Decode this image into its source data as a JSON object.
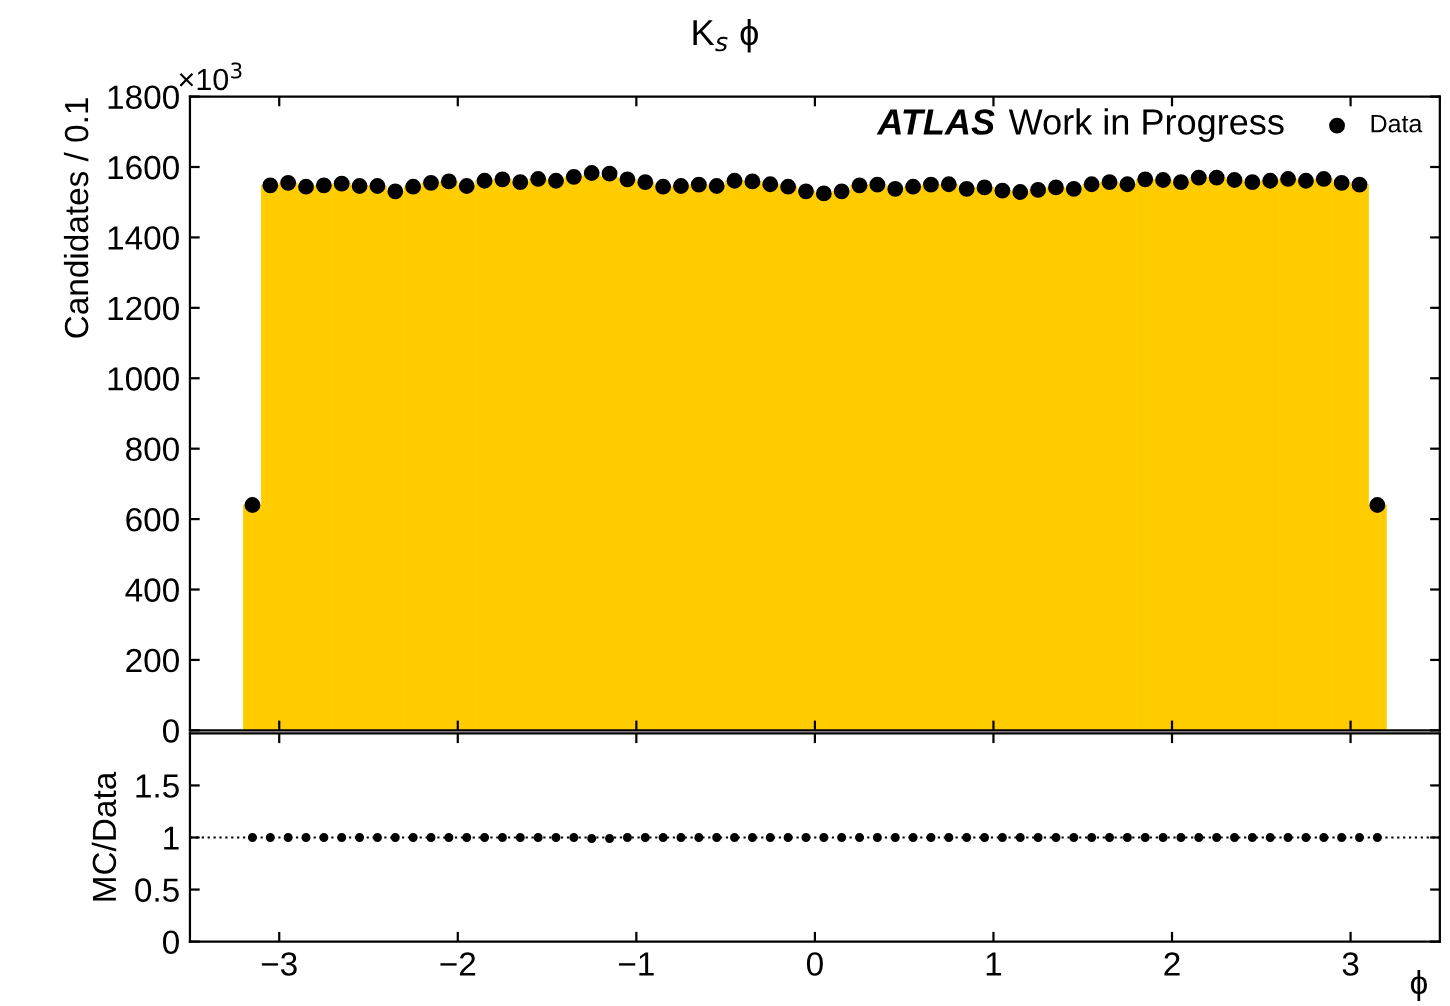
{
  "chart_data": [
    {
      "type": "histogram",
      "title": "K$_{s}$ ϕ",
      "ylabel": "Candidates / 0.1",
      "annotations": [
        "×10$^{3}$",
        "ATLAS",
        "Work in Progress"
      ],
      "bins": [
        -3.2,
        -3.1,
        -3.0,
        -2.9,
        -2.8,
        -2.7,
        -2.6,
        -2.5,
        -2.4,
        -2.3,
        -2.2,
        -2.1,
        -2.0,
        -1.9,
        -1.8,
        -1.7,
        -1.6,
        -1.5,
        -1.4,
        -1.3,
        -1.2,
        -1.1,
        -1.0,
        -0.9,
        -0.8,
        -0.7,
        -0.6,
        -0.5,
        -0.4,
        -0.3,
        -0.2,
        -0.1,
        0.0,
        0.1,
        0.2,
        0.3,
        0.4,
        0.5,
        0.6,
        0.7,
        0.8,
        0.9,
        1.0,
        1.1,
        1.2,
        1.3,
        1.4,
        1.5,
        1.6,
        1.7,
        1.8,
        1.9,
        2.0,
        2.1,
        2.2,
        2.3,
        2.4,
        2.5,
        2.6,
        2.7,
        2.8,
        2.9,
        3.0,
        3.1,
        3.2
      ],
      "series": [
        {
          "type": "histogram",
          "color": "#ffcc00",
          "values": [
            640,
            1548,
            1555,
            1544,
            1548,
            1553,
            1546,
            1546,
            1531,
            1544,
            1555,
            1559,
            1546,
            1561,
            1565,
            1557,
            1566,
            1561,
            1572,
            1575,
            1570,
            1565,
            1557,
            1544,
            1546,
            1550,
            1546,
            1561,
            1559,
            1551,
            1544,
            1531,
            1525,
            1531,
            1548,
            1550,
            1538,
            1544,
            1550,
            1551,
            1538,
            1542,
            1533,
            1529,
            1535,
            1542,
            1538,
            1551,
            1557,
            1551,
            1565,
            1563,
            1557,
            1570,
            1570,
            1563,
            1557,
            1561,
            1566,
            1561,
            1566,
            1555,
            1550,
            640
          ]
        },
        {
          "type": "scatter",
          "name": "Data",
          "color": "#000000",
          "x": [
            -3.15,
            -3.05,
            -2.95,
            -2.85,
            -2.75,
            -2.65,
            -2.55,
            -2.45,
            -2.35,
            -2.25,
            -2.15,
            -2.05,
            -1.95,
            -1.85,
            -1.75,
            -1.65,
            -1.55,
            -1.45,
            -1.35,
            -1.25,
            -1.15,
            -1.05,
            -0.95,
            -0.85,
            -0.75,
            -0.65,
            -0.55,
            -0.45,
            -0.35,
            -0.25,
            -0.15,
            -0.05,
            0.05,
            0.15,
            0.25,
            0.35,
            0.45,
            0.55,
            0.65,
            0.75,
            0.85,
            0.95,
            1.05,
            1.15,
            1.25,
            1.35,
            1.45,
            1.55,
            1.65,
            1.75,
            1.85,
            1.95,
            2.05,
            2.15,
            2.25,
            2.35,
            2.45,
            2.55,
            2.65,
            2.75,
            2.85,
            2.95,
            3.05,
            3.15
          ],
          "values": [
            640,
            1548,
            1555,
            1544,
            1548,
            1553,
            1546,
            1546,
            1531,
            1544,
            1555,
            1559,
            1546,
            1561,
            1565,
            1557,
            1566,
            1561,
            1572,
            1583,
            1581,
            1565,
            1557,
            1544,
            1546,
            1550,
            1546,
            1561,
            1559,
            1551,
            1544,
            1531,
            1525,
            1531,
            1548,
            1550,
            1538,
            1544,
            1550,
            1551,
            1538,
            1542,
            1533,
            1529,
            1535,
            1542,
            1538,
            1551,
            1557,
            1551,
            1565,
            1563,
            1557,
            1570,
            1570,
            1563,
            1557,
            1561,
            1566,
            1561,
            1566,
            1555,
            1550,
            640
          ]
        }
      ],
      "xlim": [
        -3.5,
        3.5
      ],
      "ylim": [
        0,
        1800
      ],
      "xticks": [
        -3,
        -2,
        -1,
        0,
        1,
        2,
        3
      ],
      "yticks": [
        0,
        200,
        400,
        600,
        800,
        1000,
        1200,
        1400,
        1600,
        1800
      ],
      "tick_labels": "y",
      "legend": "top right",
      "marker": "circle",
      "grid": false
    },
    {
      "type": "scatter",
      "ylabel": "MC/Data",
      "xlabel": "ϕ",
      "x": [
        -3.15,
        -3.05,
        -2.95,
        -2.85,
        -2.75,
        -2.65,
        -2.55,
        -2.45,
        -2.35,
        -2.25,
        -2.15,
        -2.05,
        -1.95,
        -1.85,
        -1.75,
        -1.65,
        -1.55,
        -1.45,
        -1.35,
        -1.25,
        -1.15,
        -1.05,
        -0.95,
        -0.85,
        -0.75,
        -0.65,
        -0.55,
        -0.45,
        -0.35,
        -0.25,
        -0.15,
        -0.05,
        0.05,
        0.15,
        0.25,
        0.35,
        0.45,
        0.55,
        0.65,
        0.75,
        0.85,
        0.95,
        1.05,
        1.15,
        1.25,
        1.35,
        1.45,
        1.55,
        1.65,
        1.75,
        1.85,
        1.95,
        2.05,
        2.15,
        2.25,
        2.35,
        2.45,
        2.55,
        2.65,
        2.75,
        2.85,
        2.95,
        3.05,
        3.15
      ],
      "values": [
        1,
        1,
        1,
        1,
        1,
        1,
        1,
        1,
        1,
        1,
        1,
        1,
        1,
        1,
        1,
        1,
        1,
        1,
        1,
        0.99,
        0.99,
        1,
        1,
        1,
        1,
        1,
        1,
        1,
        1,
        1,
        1,
        1,
        1,
        1,
        1,
        1,
        1,
        1,
        1,
        1,
        1,
        1,
        1,
        1,
        1,
        1,
        1,
        1,
        1,
        1,
        1,
        1,
        1,
        1,
        1,
        1,
        1,
        1,
        1,
        1,
        1,
        1,
        1,
        1
      ],
      "color": "#000000",
      "xlim": [
        -3.5,
        3.5
      ],
      "ylim": [
        0,
        2
      ],
      "xticks": [
        -3,
        -2,
        -1,
        0,
        1,
        2,
        3
      ],
      "yticks": [
        0,
        0.5,
        1,
        1.5
      ],
      "ref_lines": [
        {
          "axis": "y",
          "value": 1,
          "line_style": "dotted",
          "color": "#000000"
        }
      ],
      "marker": "circle",
      "grid": false
    }
  ]
}
